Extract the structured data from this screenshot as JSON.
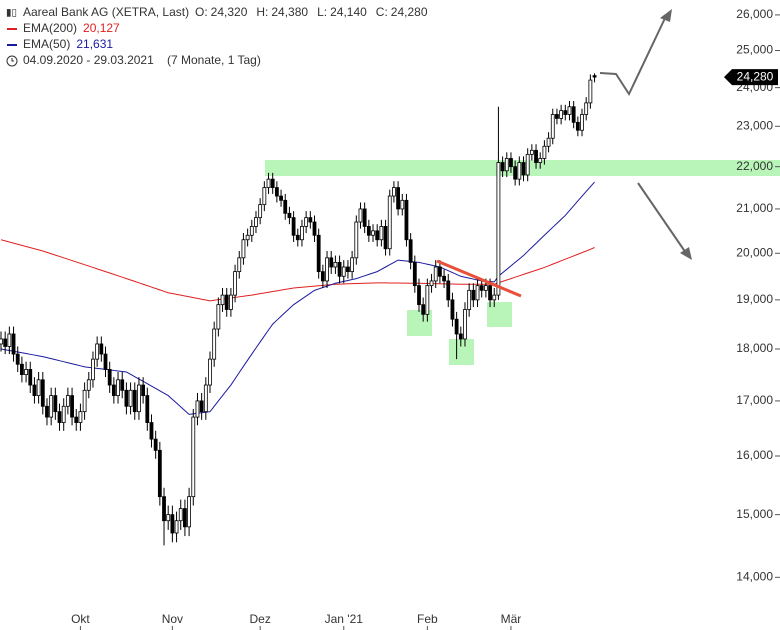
{
  "header": {
    "title": "Aareal Bank AG (XETRA, Last)",
    "ohlc": [
      {
        "label": "O:",
        "value": "24,320"
      },
      {
        "label": "H:",
        "value": "24,380"
      },
      {
        "label": "L:",
        "value": "24,140"
      },
      {
        "label": "C:",
        "value": "24,280"
      }
    ],
    "range": "04.09.2020 - 29.03.2021",
    "duration": "(7 Monate, 1 Tag)"
  },
  "chart_data": {
    "type": "candlestick",
    "log_scale": true,
    "grid": false,
    "up_color": "#ffffff",
    "down_color": "#000000",
    "last_price_label": "24,280",
    "ylim": [
      13550,
      26430
    ],
    "yticks": [
      {
        "value": 14000,
        "label": "14,000"
      },
      {
        "value": 15000,
        "label": "15,000"
      },
      {
        "value": 16000,
        "label": "16,000"
      },
      {
        "value": 17000,
        "label": "17,000"
      },
      {
        "value": 18000,
        "label": "18,000"
      },
      {
        "value": 19000,
        "label": "19,000"
      },
      {
        "value": 20000,
        "label": "20,000"
      },
      {
        "value": 21000,
        "label": "21,000"
      },
      {
        "value": 22000,
        "label": "22,000"
      },
      {
        "value": 23000,
        "label": "23,000"
      },
      {
        "value": 24000,
        "label": "24,000"
      },
      {
        "value": 25000,
        "label": "25,000"
      },
      {
        "value": 26000,
        "label": "26,000"
      }
    ],
    "categories": [
      null,
      null,
      null,
      null,
      null,
      null,
      null,
      null,
      null,
      null,
      null,
      null,
      null,
      null,
      null,
      null,
      null,
      null,
      null,
      "Okt",
      null,
      null,
      null,
      null,
      null,
      null,
      null,
      null,
      null,
      null,
      null,
      null,
      null,
      null,
      null,
      null,
      null,
      null,
      null,
      null,
      null,
      "Nov",
      null,
      null,
      null,
      null,
      null,
      null,
      null,
      null,
      null,
      null,
      null,
      null,
      null,
      null,
      null,
      null,
      null,
      null,
      null,
      null,
      "Dez",
      null,
      null,
      null,
      null,
      null,
      null,
      null,
      null,
      null,
      null,
      null,
      null,
      null,
      null,
      null,
      null,
      null,
      null,
      null,
      "Jan '21",
      null,
      null,
      null,
      null,
      null,
      null,
      null,
      null,
      null,
      null,
      null,
      null,
      null,
      null,
      null,
      null,
      null,
      null,
      null,
      "Feb",
      null,
      null,
      null,
      null,
      null,
      null,
      null,
      null,
      null,
      null,
      null,
      null,
      null,
      null,
      null,
      null,
      null,
      null,
      null,
      "Mär",
      null,
      null,
      null,
      null,
      null,
      null,
      null,
      null,
      null,
      null,
      null,
      null,
      null,
      null,
      null,
      null,
      null,
      null,
      null,
      null
    ],
    "open": [
      18100,
      18200,
      18050,
      18300,
      17900,
      17700,
      17500,
      17600,
      17300,
      17100,
      17400,
      16900,
      16700,
      17100,
      16800,
      16600,
      16900,
      17100,
      16700,
      16600,
      16800,
      17200,
      17400,
      17800,
      18100,
      17900,
      17600,
      17300,
      17100,
      17400,
      17200,
      16900,
      17200,
      16800,
      17300,
      17100,
      16600,
      16300,
      16100,
      15300,
      14900,
      15000,
      14700,
      14900,
      15100,
      14800,
      15300,
      16700,
      17000,
      16800,
      17300,
      17800,
      18400,
      18900,
      19100,
      18800,
      19100,
      19600,
      19900,
      20300,
      20400,
      20600,
      20800,
      21100,
      21500,
      21700,
      21500,
      21300,
      21200,
      20900,
      20800,
      20400,
      20300,
      20600,
      20800,
      20700,
      20400,
      19600,
      19400,
      19900,
      19700,
      19800,
      19500,
      19700,
      19600,
      19900,
      20700,
      21000,
      20600,
      20400,
      20500,
      20300,
      20600,
      20100,
      21300,
      21500,
      21000,
      21200,
      20300,
      19800,
      19300,
      18900,
      18700,
      19300,
      19400,
      19700,
      19500,
      19400,
      19000,
      18600,
      18300,
      18200,
      18800,
      19200,
      19000,
      19300,
      19200,
      19300,
      19000,
      19100,
      22100,
      21900,
      22200,
      22000,
      21700,
      22100,
      21800,
      22300,
      22400,
      22100,
      22200,
      22500,
      22700,
      23300,
      23200,
      23400,
      23300,
      23500,
      23100,
      22900,
      23300,
      23600,
      24320
    ],
    "high": [
      18350,
      18350,
      18450,
      18450,
      18050,
      17850,
      17750,
      17750,
      17450,
      17550,
      17550,
      17050,
      17250,
      17250,
      16950,
      17050,
      17250,
      17250,
      16850,
      16950,
      17350,
      17550,
      17950,
      18250,
      18250,
      18050,
      17750,
      17450,
      17550,
      17550,
      17350,
      17350,
      17350,
      17450,
      17450,
      17250,
      16750,
      16450,
      16250,
      15450,
      15150,
      15150,
      15050,
      15250,
      15250,
      15450,
      16850,
      17150,
      17150,
      17450,
      17950,
      18550,
      19050,
      19250,
      19250,
      19250,
      19750,
      20050,
      20450,
      20550,
      20750,
      20950,
      21250,
      21650,
      21850,
      21850,
      21650,
      21450,
      21350,
      21050,
      20950,
      20550,
      20750,
      20950,
      20950,
      20850,
      20550,
      19750,
      20050,
      20050,
      19950,
      19950,
      19850,
      19850,
      20050,
      20850,
      21150,
      21150,
      20750,
      20650,
      20650,
      20750,
      20750,
      21450,
      21650,
      21650,
      21350,
      21350,
      20450,
      19950,
      19450,
      19050,
      19450,
      19550,
      19850,
      19850,
      19650,
      19550,
      19150,
      18750,
      18450,
      18950,
      19350,
      19350,
      19450,
      19450,
      19450,
      19450,
      19250,
      23500,
      22250,
      22350,
      22350,
      22150,
      22250,
      22250,
      22450,
      22550,
      22550,
      22350,
      22650,
      22850,
      23450,
      23450,
      23550,
      23550,
      23650,
      23650,
      23250,
      23450,
      23750,
      24350,
      24380
    ],
    "low": [
      17950,
      17900,
      17900,
      17750,
      17550,
      17350,
      17350,
      17150,
      16950,
      16950,
      16750,
      16550,
      16550,
      16650,
      16450,
      16450,
      16750,
      16550,
      16450,
      16450,
      16650,
      17050,
      17250,
      17650,
      17750,
      17450,
      17150,
      16950,
      16950,
      17050,
      16750,
      16750,
      16650,
      16650,
      16950,
      16450,
      16150,
      15950,
      15150,
      14500,
      14750,
      14550,
      14550,
      14750,
      14650,
      14650,
      15150,
      16550,
      16650,
      16650,
      17150,
      17650,
      18250,
      18750,
      18650,
      18650,
      18950,
      19450,
      19750,
      20150,
      20250,
      20450,
      20650,
      20950,
      21350,
      21350,
      21150,
      21050,
      20750,
      20650,
      20250,
      20150,
      20150,
      20450,
      20550,
      20250,
      19450,
      19250,
      19250,
      19550,
      19550,
      19350,
      19350,
      19450,
      19450,
      19750,
      20550,
      20450,
      20250,
      20250,
      20150,
      20150,
      19950,
      19950,
      21150,
      20850,
      20850,
      20150,
      19650,
      19150,
      18750,
      18550,
      18550,
      19150,
      19250,
      19350,
      19250,
      18850,
      18450,
      17800,
      18050,
      18050,
      18650,
      18850,
      18850,
      19050,
      19050,
      18850,
      18850,
      19000,
      21750,
      21750,
      21850,
      21550,
      21550,
      21650,
      21650,
      22150,
      21950,
      21950,
      22050,
      22350,
      22550,
      23050,
      23050,
      23150,
      23150,
      22950,
      22750,
      22750,
      23150,
      23450,
      24140
    ],
    "close": [
      18200,
      18050,
      18300,
      17900,
      17700,
      17500,
      17600,
      17300,
      17100,
      17400,
      16900,
      16700,
      17100,
      16800,
      16600,
      16900,
      17100,
      16700,
      16600,
      16800,
      17200,
      17400,
      17800,
      18100,
      17900,
      17600,
      17300,
      17100,
      17400,
      17200,
      16900,
      17200,
      16800,
      17300,
      17100,
      16600,
      16300,
      16100,
      15300,
      14900,
      15000,
      14700,
      14900,
      15100,
      14800,
      15300,
      16700,
      17000,
      16800,
      17300,
      17800,
      18400,
      18900,
      19100,
      18800,
      19100,
      19600,
      19900,
      20300,
      20400,
      20600,
      20800,
      21100,
      21500,
      21700,
      21500,
      21300,
      21200,
      20900,
      20800,
      20400,
      20300,
      20600,
      20800,
      20700,
      20400,
      19600,
      19400,
      19900,
      19700,
      19800,
      19500,
      19700,
      19600,
      19900,
      20700,
      21000,
      20600,
      20400,
      20500,
      20300,
      20600,
      20100,
      21300,
      21500,
      21000,
      21200,
      20300,
      19800,
      19300,
      18900,
      18700,
      19300,
      19400,
      19700,
      19500,
      19400,
      19000,
      18600,
      18300,
      18200,
      18800,
      19200,
      19000,
      19300,
      19200,
      19300,
      19000,
      19100,
      22100,
      21900,
      22200,
      22000,
      21700,
      22100,
      21800,
      22300,
      22400,
      22100,
      22200,
      22500,
      22700,
      23300,
      23200,
      23400,
      23300,
      23500,
      23100,
      22900,
      23300,
      23600,
      24200,
      24280
    ],
    "series": [
      {
        "name": "EMA(200)",
        "color": "#e02020",
        "last_label": "20,127",
        "values": [
          20300,
          20275,
          20250,
          20225,
          20200,
          20175,
          20150,
          20125,
          20100,
          20075,
          20050,
          20020,
          19990,
          19960,
          19930,
          19900,
          19870,
          19840,
          19810,
          19780,
          19750,
          19720,
          19690,
          19660,
          19630,
          19600,
          19570,
          19540,
          19510,
          19480,
          19450,
          19420,
          19390,
          19360,
          19330,
          19300,
          19270,
          19240,
          19210,
          19180,
          19150,
          19133,
          19116,
          19099,
          19082,
          19065,
          19048,
          19031,
          19014,
          18997,
          18980,
          18992,
          19004,
          19016,
          19028,
          19040,
          19052,
          19064,
          19076,
          19088,
          19100,
          19115,
          19130,
          19145,
          19160,
          19175,
          19190,
          19205,
          19220,
          19235,
          19250,
          19258,
          19266,
          19274,
          19282,
          19290,
          19298,
          19306,
          19314,
          19322,
          19330,
          19333,
          19336,
          19339,
          19342,
          19345,
          19348,
          19351,
          19354,
          19357,
          19360,
          19359,
          19358,
          19357,
          19356,
          19355,
          19354,
          19353,
          19352,
          19351,
          19350,
          19348,
          19346,
          19344,
          19342,
          19340,
          19338,
          19336,
          19334,
          19332,
          19330,
          19330,
          19330,
          19330,
          19330,
          19330,
          19330,
          19330,
          19330,
          19360,
          19390,
          19420,
          19450,
          19480,
          19510,
          19540,
          19570,
          19600,
          19630,
          19660,
          19690,
          19726,
          19762,
          19798,
          19834,
          19870,
          19906,
          19942,
          19978,
          20014,
          20050,
          20088,
          20127
        ]
      },
      {
        "name": "EMA(50)",
        "color": "#1a1aa0",
        "last_label": "21,631",
        "values": [
          18000,
          17985,
          17970,
          17955,
          17940,
          17925,
          17910,
          17895,
          17880,
          17865,
          17850,
          17830,
          17810,
          17790,
          17770,
          17750,
          17730,
          17710,
          17690,
          17670,
          17650,
          17640,
          17630,
          17620,
          17610,
          17600,
          17590,
          17580,
          17570,
          17560,
          17550,
          17505,
          17460,
          17415,
          17370,
          17325,
          17280,
          17235,
          17190,
          17145,
          17100,
          17030,
          16960,
          16890,
          16820,
          16750,
          16760,
          16770,
          16780,
          16790,
          16800,
          16900,
          17000,
          17100,
          17200,
          17300,
          17420,
          17540,
          17660,
          17780,
          17900,
          18020,
          18140,
          18260,
          18380,
          18500,
          18580,
          18660,
          18740,
          18820,
          18900,
          18960,
          19020,
          19080,
          19140,
          19200,
          19230,
          19260,
          19290,
          19320,
          19350,
          19370,
          19390,
          19410,
          19430,
          19450,
          19480,
          19510,
          19540,
          19570,
          19600,
          19650,
          19700,
          19750,
          19800,
          19850,
          19840,
          19830,
          19820,
          19810,
          19800,
          19780,
          19760,
          19740,
          19720,
          19700,
          19660,
          19620,
          19580,
          19540,
          19500,
          19480,
          19460,
          19440,
          19420,
          19400,
          19393,
          19387,
          19380,
          19500,
          19575,
          19650,
          19725,
          19800,
          19875,
          19950,
          20040,
          20130,
          20220,
          20310,
          20400,
          20490,
          20580,
          20670,
          20760,
          20850,
          20962,
          21073,
          21185,
          21297,
          21408,
          21520,
          21631
        ]
      }
    ]
  }
}
